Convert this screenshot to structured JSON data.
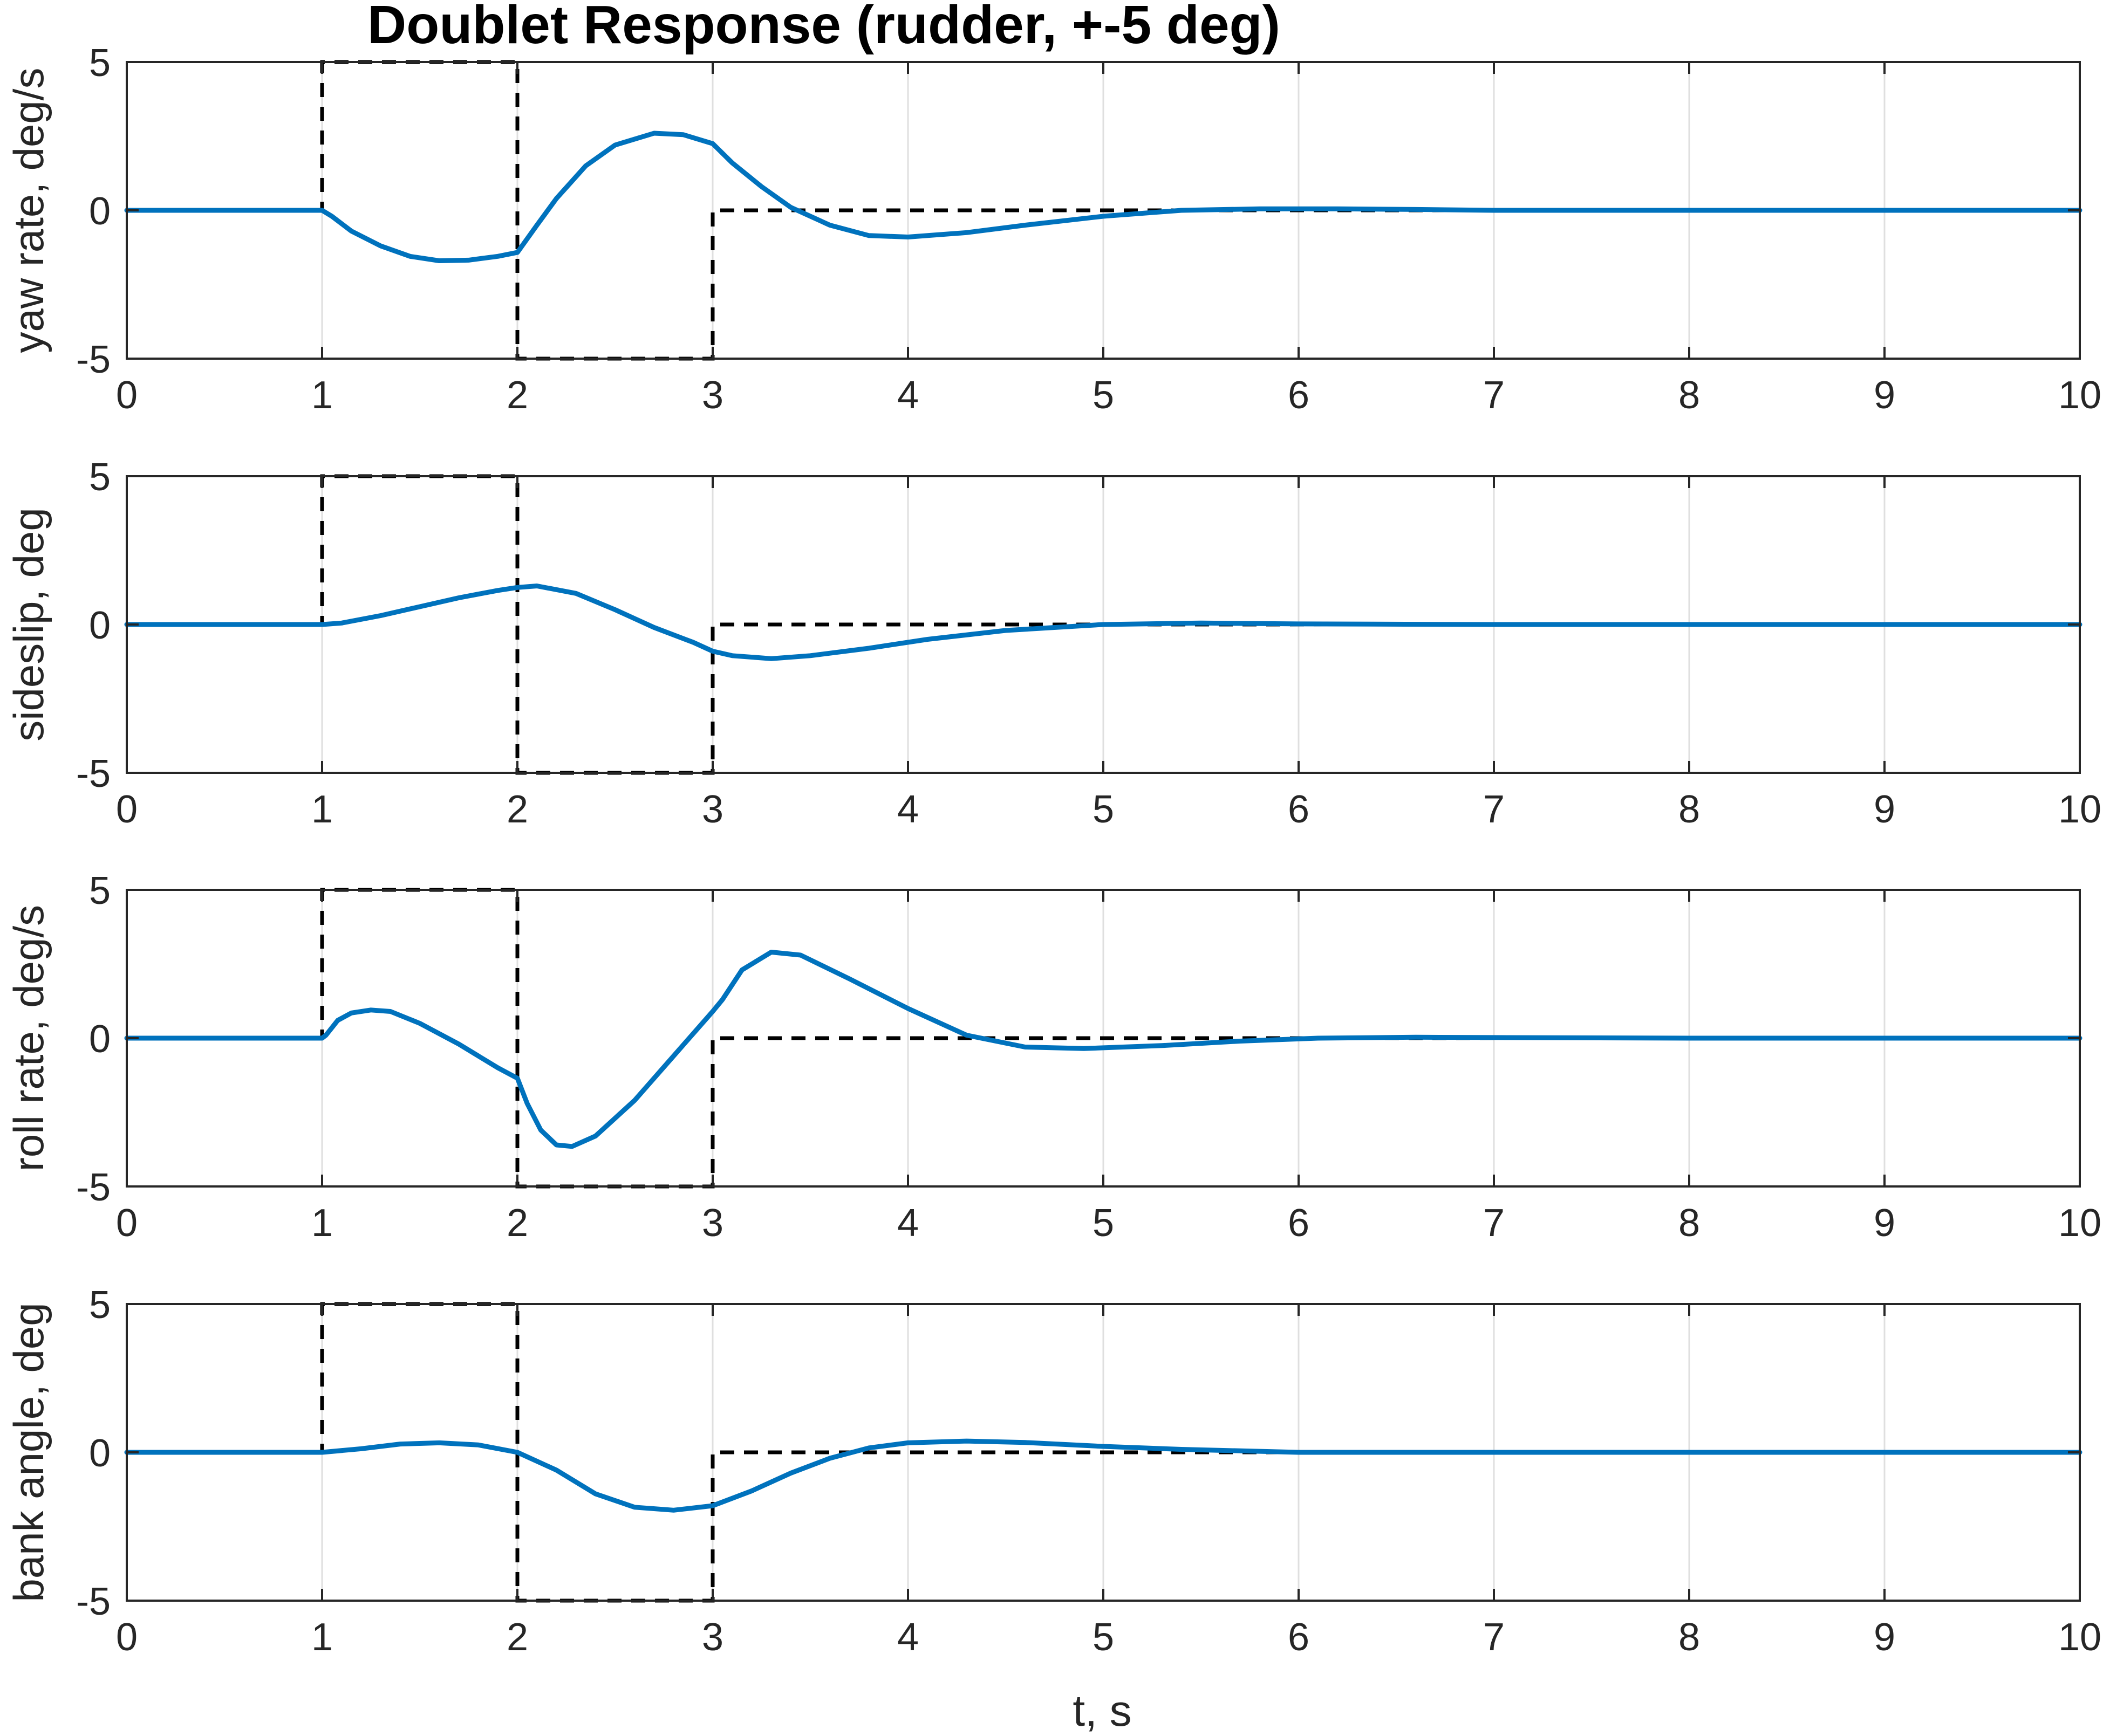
{
  "chart_data": {
    "type": "line",
    "title": "Doublet Response (rudder, +-5 deg)",
    "xlabel": "t, s",
    "xlim": [
      0,
      10
    ],
    "xticks": [
      0,
      1,
      2,
      3,
      4,
      5,
      6,
      7,
      8,
      9,
      10
    ],
    "grid": "x-only",
    "command": {
      "x": [
        0,
        1,
        1,
        2,
        2,
        3,
        3,
        10
      ],
      "y": [
        0,
        0,
        5,
        5,
        -5,
        -5,
        0,
        0
      ]
    },
    "panels": [
      {
        "ylabel": "yaw rate, deg/s",
        "ylim": [
          -5,
          5
        ],
        "yticks": [
          -5,
          0,
          5
        ],
        "response": {
          "x": [
            0,
            1,
            1.05,
            1.15,
            1.3,
            1.45,
            1.6,
            1.75,
            1.9,
            2,
            2.1,
            2.2,
            2.35,
            2.5,
            2.7,
            2.85,
            3,
            3.1,
            3.25,
            3.4,
            3.6,
            3.8,
            4,
            4.3,
            4.6,
            5,
            5.4,
            5.8,
            6.2,
            6.6,
            7,
            8,
            9,
            10
          ],
          "y": [
            0,
            0,
            -0.2,
            -0.7,
            -1.2,
            -1.55,
            -1.7,
            -1.68,
            -1.55,
            -1.42,
            -0.5,
            0.4,
            1.5,
            2.2,
            2.6,
            2.55,
            2.25,
            1.6,
            0.8,
            0.1,
            -0.5,
            -0.85,
            -0.9,
            -0.75,
            -0.5,
            -0.2,
            0,
            0.05,
            0.05,
            0.03,
            0,
            0,
            0,
            0
          ]
        }
      },
      {
        "ylabel": "sideslip, deg",
        "ylim": [
          -5,
          5
        ],
        "yticks": [
          -5,
          0,
          5
        ],
        "response": {
          "x": [
            0,
            1,
            1.1,
            1.3,
            1.5,
            1.7,
            1.9,
            2,
            2.1,
            2.3,
            2.5,
            2.7,
            2.9,
            3,
            3.1,
            3.3,
            3.5,
            3.8,
            4.1,
            4.5,
            5,
            5.5,
            6,
            7,
            8,
            10
          ],
          "y": [
            0,
            0,
            0.05,
            0.3,
            0.6,
            0.9,
            1.15,
            1.25,
            1.3,
            1.05,
            0.5,
            -0.1,
            -0.6,
            -0.9,
            -1.05,
            -1.15,
            -1.05,
            -0.8,
            -0.5,
            -0.2,
            0,
            0.05,
            0.02,
            0,
            0,
            0
          ]
        }
      },
      {
        "ylabel": "roll rate, deg/s",
        "ylim": [
          -5,
          5
        ],
        "yticks": [
          -5,
          0,
          5
        ],
        "response": {
          "x": [
            0,
            1,
            1.02,
            1.08,
            1.15,
            1.25,
            1.35,
            1.5,
            1.7,
            1.9,
            2,
            2.05,
            2.12,
            2.2,
            2.28,
            2.4,
            2.6,
            2.8,
            3,
            3.05,
            3.15,
            3.3,
            3.45,
            3.7,
            4,
            4.3,
            4.6,
            4.9,
            5.3,
            5.7,
            6.1,
            6.6,
            7,
            8,
            9,
            10
          ],
          "y": [
            0,
            0,
            0.1,
            0.6,
            0.85,
            0.95,
            0.9,
            0.5,
            -0.2,
            -1.0,
            -1.35,
            -2.2,
            -3.1,
            -3.6,
            -3.65,
            -3.3,
            -2.1,
            -0.6,
            0.9,
            1.3,
            2.3,
            2.9,
            2.8,
            2.0,
            1.0,
            0.1,
            -0.3,
            -0.35,
            -0.25,
            -0.1,
            0,
            0.03,
            0.02,
            0,
            0,
            0
          ]
        }
      },
      {
        "ylabel": "bank angle, deg",
        "ylim": [
          -5,
          5
        ],
        "yticks": [
          -5,
          0,
          5
        ],
        "response": {
          "x": [
            0,
            1,
            1.2,
            1.4,
            1.6,
            1.8,
            2,
            2.2,
            2.4,
            2.6,
            2.8,
            3,
            3.2,
            3.4,
            3.6,
            3.8,
            4,
            4.3,
            4.6,
            5,
            5.4,
            6,
            7,
            8,
            10
          ],
          "y": [
            0,
            0,
            0.12,
            0.28,
            0.32,
            0.25,
            0,
            -0.6,
            -1.4,
            -1.85,
            -1.95,
            -1.8,
            -1.3,
            -0.7,
            -0.2,
            0.15,
            0.32,
            0.38,
            0.33,
            0.2,
            0.1,
            0,
            0,
            0,
            0
          ]
        }
      }
    ]
  }
}
